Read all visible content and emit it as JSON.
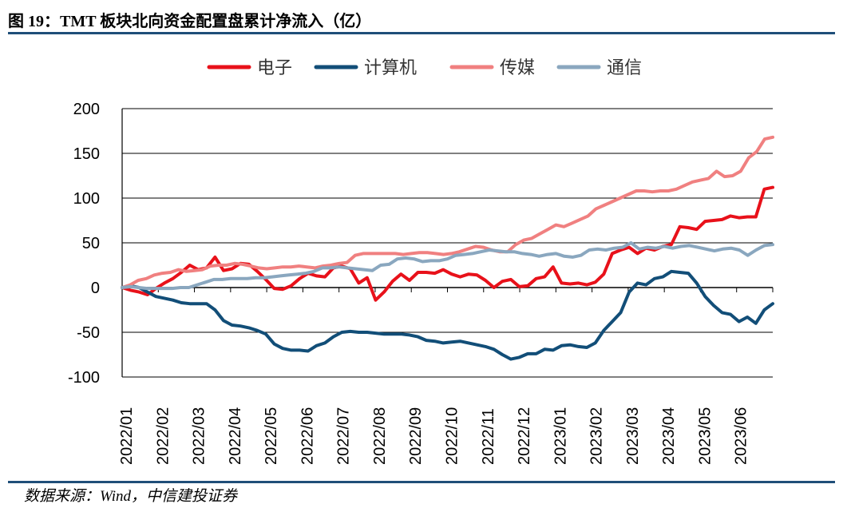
{
  "title": "图 19：TMT 板块北向资金配置盘累计净流入（亿）",
  "source": "数据来源：Wind，中信建投证券",
  "colors": {
    "电子": "#e8111a",
    "计算机": "#124e78",
    "传媒": "#f08080",
    "通信": "#8aa7bf"
  },
  "chart_data": {
    "type": "line",
    "title": "",
    "xlabel": "",
    "ylabel": "",
    "ylim": [
      -100,
      200
    ],
    "yticks": [
      "200",
      "150",
      "100",
      "50",
      "0",
      "-50",
      "-100"
    ],
    "xticks": [
      "2022/01",
      "2022/02",
      "2022/03",
      "2022/04",
      "2022/05",
      "2022/06",
      "2022/07",
      "2022/08",
      "2022/09",
      "2022/10",
      "2022/11",
      "2022/12",
      "2023/01",
      "2023/02",
      "2023/03",
      "2023/04",
      "2023/05",
      "2023/06"
    ],
    "legend_position": "top-center",
    "grid": "horizontal",
    "series": [
      {
        "name": "电子",
        "values": [
          0,
          -3,
          -5,
          -8,
          -1,
          5,
          10,
          17,
          25,
          20,
          22,
          34,
          19,
          21,
          27,
          26,
          18,
          9,
          -1,
          -2,
          2,
          10,
          16,
          13,
          12,
          22,
          24,
          21,
          5,
          11,
          -14,
          -5,
          7,
          15,
          8,
          17,
          17,
          16,
          20,
          15,
          12,
          15,
          14,
          8,
          0,
          7,
          9,
          1,
          2,
          10,
          12,
          23,
          5,
          4,
          5,
          3,
          6,
          15,
          38,
          42,
          45,
          38,
          44,
          42,
          46,
          48,
          68,
          67,
          65,
          74,
          75,
          76,
          80,
          78,
          79,
          79,
          110,
          112
        ]
      },
      {
        "name": "计算机",
        "values": [
          0,
          2,
          0,
          -5,
          -10,
          -12,
          -14,
          -17,
          -18,
          -18,
          -18,
          -25,
          -37,
          -42,
          -43,
          -45,
          -48,
          -52,
          -63,
          -68,
          -70,
          -70,
          -71,
          -65,
          -62,
          -55,
          -50,
          -49,
          -50,
          -50,
          -51,
          -52,
          -52,
          -52,
          -53,
          -55,
          -59,
          -60,
          -62,
          -61,
          -60,
          -62,
          -64,
          -66,
          -69,
          -75,
          -80,
          -78,
          -74,
          -74,
          -69,
          -70,
          -65,
          -64,
          -66,
          -67,
          -62,
          -48,
          -38,
          -28,
          -5,
          5,
          3,
          10,
          12,
          18,
          17,
          16,
          5,
          -10,
          -20,
          -28,
          -30,
          -38,
          -33,
          -40,
          -25,
          -18
        ]
      },
      {
        "name": "传媒",
        "values": [
          0,
          3,
          8,
          10,
          14,
          16,
          17,
          20,
          18,
          19,
          20,
          24,
          25,
          25,
          27,
          26,
          24,
          22,
          21,
          22,
          23,
          23,
          24,
          23,
          22,
          24,
          25,
          27,
          28,
          36,
          38,
          38,
          38,
          38,
          38,
          37,
          38,
          39,
          39,
          38,
          37,
          38,
          40,
          43,
          46,
          45,
          42,
          40,
          40,
          48,
          53,
          55,
          60,
          65,
          70,
          68,
          72,
          76,
          80,
          88,
          92,
          96,
          100,
          104,
          108,
          108,
          107,
          108,
          108,
          110,
          114,
          118,
          120,
          122,
          130,
          124,
          125,
          130,
          145,
          152,
          166,
          168
        ]
      },
      {
        "name": "通信",
        "values": [
          0,
          1,
          0,
          -1,
          -1,
          -1,
          -1,
          0,
          0,
          3,
          6,
          9,
          9,
          10,
          10,
          10,
          11,
          11,
          12,
          13,
          14,
          15,
          16,
          18,
          22,
          22,
          23,
          22,
          21,
          20,
          19,
          25,
          26,
          32,
          33,
          32,
          29,
          30,
          30,
          32,
          36,
          37,
          38,
          40,
          42,
          41,
          40,
          40,
          38,
          37,
          35,
          37,
          38,
          35,
          34,
          36,
          42,
          43,
          42,
          44,
          45,
          50,
          43,
          45,
          44,
          46,
          44,
          46,
          47,
          45,
          43,
          41,
          43,
          44,
          42,
          36,
          42,
          47,
          48
        ]
      }
    ]
  }
}
